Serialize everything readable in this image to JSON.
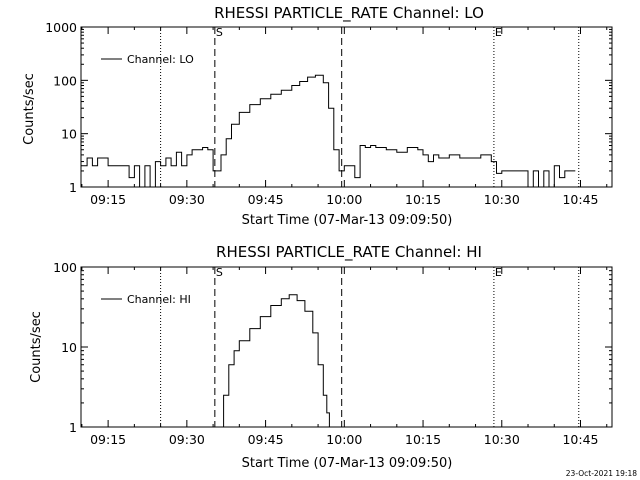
{
  "chart_data": [
    {
      "type": "line",
      "title": "RHESSI PARTICLE_RATE Channel: LO",
      "xlabel": "Start Time (07-Mar-13 09:09:50)",
      "ylabel": "Counts/sec",
      "yscale": "log",
      "ylim": [
        1,
        1000
      ],
      "xlim": [
        "09:09:50",
        "10:51:00"
      ],
      "x_ticks": [
        "09:15",
        "09:30",
        "09:45",
        "10:00",
        "10:15",
        "10:30",
        "10:45"
      ],
      "y_ticks": [
        "1",
        "10",
        "100",
        "1000"
      ],
      "legend": {
        "position": "top-left",
        "entries": [
          "Channel: LO"
        ]
      },
      "grid": false,
      "markers": [
        {
          "time": "09:25:00",
          "style": "dotted",
          "label": ""
        },
        {
          "time": "09:35:20",
          "style": "dashed",
          "label": "S"
        },
        {
          "time": "09:59:30",
          "style": "dashed",
          "label": ""
        },
        {
          "time": "10:28:30",
          "style": "dotted",
          "label": "E"
        },
        {
          "time": "10:44:40",
          "style": "dotted",
          "label": ""
        }
      ],
      "series": [
        {
          "name": "Channel: LO",
          "x": [
            "09:09:50",
            "09:11:00",
            "09:12:00",
            "09:13:00",
            "09:14:00",
            "09:15:00",
            "09:16:00",
            "09:17:00",
            "09:18:00",
            "09:19:00",
            "09:20:00",
            "09:21:00",
            "09:22:00",
            "09:23:00",
            "09:24:00",
            "09:25:00",
            "09:26:00",
            "09:27:00",
            "09:28:00",
            "09:29:00",
            "09:30:00",
            "09:31:00",
            "09:32:00",
            "09:33:00",
            "09:34:00",
            "09:35:00",
            "09:35:40",
            "09:36:30",
            "09:37:30",
            "09:38:30",
            "09:40:00",
            "09:42:00",
            "09:44:00",
            "09:46:00",
            "09:48:00",
            "09:50:00",
            "09:51:30",
            "09:53:00",
            "09:54:30",
            "09:56:00",
            "09:57:00",
            "09:58:00",
            "09:59:00",
            "10:00:00",
            "10:01:00",
            "10:02:00",
            "10:03:00",
            "10:04:00",
            "10:05:00",
            "10:06:00",
            "10:08:00",
            "10:10:00",
            "10:12:00",
            "10:14:00",
            "10:15:00",
            "10:16:00",
            "10:17:00",
            "10:18:00",
            "10:20:00",
            "10:22:00",
            "10:24:00",
            "10:26:00",
            "10:28:00",
            "10:29:00",
            "10:30:00",
            "10:31:00",
            "10:32:00",
            "10:33:00",
            "10:34:00",
            "10:35:00",
            "10:36:00",
            "10:37:00",
            "10:38:00",
            "10:39:00",
            "10:40:00",
            "10:41:00",
            "10:42:00",
            "10:43:00",
            "10:44:00"
          ],
          "y": [
            2.5,
            3.5,
            2.5,
            3.5,
            3.5,
            2.5,
            2.5,
            2.5,
            2.5,
            1.5,
            2.5,
            1.0,
            2.5,
            1.0,
            3.0,
            2.5,
            3.5,
            2.5,
            4.5,
            2.5,
            4.0,
            5.0,
            5.0,
            5.5,
            5.0,
            2.0,
            2.0,
            4.0,
            8.0,
            15,
            25,
            35,
            45,
            55,
            65,
            80,
            95,
            115,
            125,
            90,
            30,
            5,
            2,
            2.5,
            2.5,
            1.5,
            6,
            5.5,
            6,
            5.5,
            5,
            4.5,
            5.5,
            5,
            4,
            3,
            4,
            3.5,
            4,
            3.5,
            3.5,
            4,
            3,
            1.8,
            2,
            2,
            2,
            2,
            2,
            1.0,
            2,
            1.0,
            2,
            1.0,
            2.5,
            1.5,
            2,
            2,
            2
          ]
        }
      ]
    },
    {
      "type": "line",
      "title": "RHESSI PARTICLE_RATE Channel: HI",
      "xlabel": "Start Time (07-Mar-13 09:09:50)",
      "ylabel": "Counts/sec",
      "yscale": "log",
      "ylim": [
        1,
        100
      ],
      "xlim": [
        "09:09:50",
        "10:51:00"
      ],
      "x_ticks": [
        "09:15",
        "09:30",
        "09:45",
        "10:00",
        "10:15",
        "10:30",
        "10:45"
      ],
      "y_ticks": [
        "1",
        "10",
        "100"
      ],
      "legend": {
        "position": "top-left",
        "entries": [
          "Channel: HI"
        ]
      },
      "grid": false,
      "markers": [
        {
          "time": "09:25:00",
          "style": "dotted",
          "label": ""
        },
        {
          "time": "09:35:20",
          "style": "dashed",
          "label": "S"
        },
        {
          "time": "09:59:30",
          "style": "dashed",
          "label": ""
        },
        {
          "time": "10:28:30",
          "style": "dotted",
          "label": "E"
        },
        {
          "time": "10:44:40",
          "style": "dotted",
          "label": ""
        }
      ],
      "series": [
        {
          "name": "Channel: HI",
          "x": [
            "09:36:00",
            "09:37:00",
            "09:38:00",
            "09:39:00",
            "09:40:00",
            "09:42:00",
            "09:44:00",
            "09:46:00",
            "09:48:00",
            "09:49:30",
            "09:51:00",
            "09:52:30",
            "09:54:00",
            "09:55:00",
            "09:56:00",
            "09:56:40",
            "09:57:10"
          ],
          "y": [
            1.0,
            2.5,
            6,
            9,
            12,
            17,
            24,
            33,
            40,
            45,
            38,
            28,
            15,
            6,
            2.5,
            1.5,
            1.0
          ]
        }
      ]
    }
  ],
  "footer": {
    "timestamp": "23-Oct-2021 19:18"
  }
}
